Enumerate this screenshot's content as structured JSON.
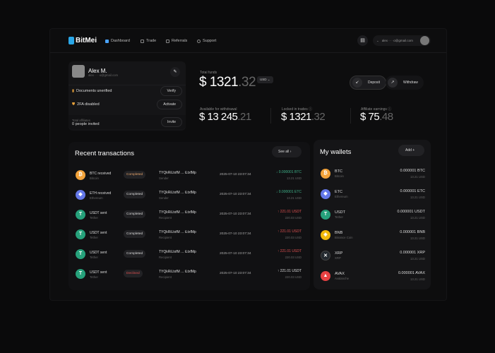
{
  "brand": "BitMei",
  "nav": [
    {
      "label": "Dashboard",
      "active": true
    },
    {
      "label": "Trade"
    },
    {
      "label": "Referrals"
    },
    {
      "label": "Support"
    }
  ],
  "user_email": "alex · · ·o@gmail.com",
  "profile": {
    "name": "Alex M.",
    "email": "alex · · ·o@gmail.com",
    "docs": "Documents unerified",
    "verify": "Verify",
    "twofa": "2FA disabled",
    "activate": "Activate",
    "affiliates_label": "Total affiliates",
    "affiliates_value": "0 people invited",
    "invite": "Invite"
  },
  "funds": {
    "total_label": "Total funds",
    "total_int": "$ 1321",
    "total_dec": ".32",
    "currency": "USD",
    "deposit": "Deposit",
    "withdraw": "Withdraw",
    "available_label": "Available for withdrawal",
    "available_int": "$ 13 245",
    "available_dec": ".21",
    "locked_label": "Locked in trades",
    "locked_int": "$ 1321",
    "locked_dec": ".32",
    "affiliate_label": "Affiliate earnings",
    "affiliate_int": "$ 75",
    "affiliate_dec": ".48"
  },
  "transactions": {
    "title": "Recent transactions",
    "see_all": "See all",
    "rows": [
      {
        "title": "BTC received",
        "coin": "Bitcoin",
        "symbol": "₿",
        "color": "#f2a23a",
        "status": "Completed",
        "status_color": "#e6a36a",
        "addr": "TYQkRiLtxfM ... iLtxfMp",
        "role": "Sender",
        "date": "2025-07-10 23:07:34",
        "amount": "0.000001 BTC",
        "dir": "in",
        "usd": "13.21 USD"
      },
      {
        "title": "ETH received",
        "coin": "Ethereum",
        "symbol": "◆",
        "color": "#6478e8",
        "status": "Completed",
        "status_color": "#dddddd",
        "addr": "TYQkRiLtxfM ... iLtxfMp",
        "role": "Sender",
        "date": "2025-07-10 23:07:34",
        "amount": "0.000001 ETC",
        "dir": "in",
        "usd": "13.21 USD"
      },
      {
        "title": "USDT sent",
        "coin": "Tether",
        "symbol": "T",
        "color": "#26a17b",
        "status": "Completed",
        "status_color": "#dddddd",
        "addr": "TYQkRiLtxfM ... iLtxfMp",
        "role": "Recipient",
        "date": "2025-07-10 23:07:34",
        "amount": "221.01 USDT",
        "dir": "out",
        "usd": "220.03 USD"
      },
      {
        "title": "USDT sent",
        "coin": "Tether",
        "symbol": "T",
        "color": "#26a17b",
        "status": "Completed",
        "status_color": "#dddddd",
        "addr": "TYQkRiLtxfM ... iLtxfMp",
        "role": "Recipient",
        "date": "2025-07-10 23:07:34",
        "amount": "221.01 USDT",
        "dir": "out",
        "usd": "220.03 USD"
      },
      {
        "title": "USDT sent",
        "coin": "Tether",
        "symbol": "T",
        "color": "#26a17b",
        "status": "Completed",
        "status_color": "#dddddd",
        "addr": "TYQkRiLtxfM ... iLtxfMp",
        "role": "Recipient",
        "date": "2025-07-10 23:07:34",
        "amount": "221.01 USDT",
        "dir": "out",
        "usd": "220.03 USD"
      },
      {
        "title": "USDT sent",
        "coin": "Tether",
        "symbol": "T",
        "color": "#26a17b",
        "status": "Declined",
        "status_color": "#e05050",
        "addr": "TYQkRiLtxfM ... iLtxfMp",
        "role": "Recipient",
        "date": "2025-07-10 23:07:34",
        "amount": "221.01 USDT",
        "dir": "neutral",
        "usd": "220.03 USD"
      }
    ]
  },
  "wallets": {
    "title": "My wallets",
    "add": "Add",
    "rows": [
      {
        "sym": "BTC",
        "name": "Bitcoin",
        "symbol": "₿",
        "color": "#f2a23a",
        "amount": "0.000001 BTC",
        "usd": "13.21 USD"
      },
      {
        "sym": "ETC",
        "name": "Ethereum",
        "symbol": "◆",
        "color": "#6478e8",
        "amount": "0.000001 ETC",
        "usd": "13.21 USD"
      },
      {
        "sym": "USDT",
        "name": "Tether",
        "symbol": "T",
        "color": "#26a17b",
        "amount": "0.000001 USDT",
        "usd": "13.21 USD"
      },
      {
        "sym": "BNB",
        "name": "Binance Coin",
        "symbol": "◈",
        "color": "#f0b90b",
        "amount": "0.000001 BNB",
        "usd": "13.21 USD"
      },
      {
        "sym": "XRP",
        "name": "XRP",
        "symbol": "✕",
        "color": "#23292f",
        "amount": "0.000001 XRP",
        "usd": "13.21 USD"
      },
      {
        "sym": "AVAX",
        "name": "Avalanche",
        "symbol": "▲",
        "color": "#e84142",
        "amount": "0.000001 AVAX",
        "usd": "13.21 USD"
      }
    ]
  }
}
